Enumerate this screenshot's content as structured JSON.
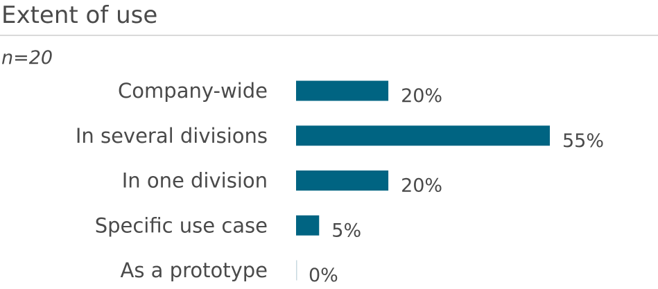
{
  "header": {
    "title": "Extent of use",
    "subtitle": "n=20"
  },
  "chart_data": {
    "type": "bar",
    "orientation": "horizontal",
    "categories": [
      "Company-wide",
      "In several divisions",
      "In one division",
      "Specific use case",
      "As a prototype"
    ],
    "values": [
      20,
      55,
      20,
      5,
      0
    ],
    "value_labels": [
      "20%",
      "55%",
      "20%",
      "5%",
      "0%"
    ],
    "unit": "%",
    "xlim": [
      0,
      55
    ],
    "grid": false,
    "legend": "none",
    "colors": {
      "bar": "#006482",
      "zero_bar": "#c8d9e0"
    }
  }
}
